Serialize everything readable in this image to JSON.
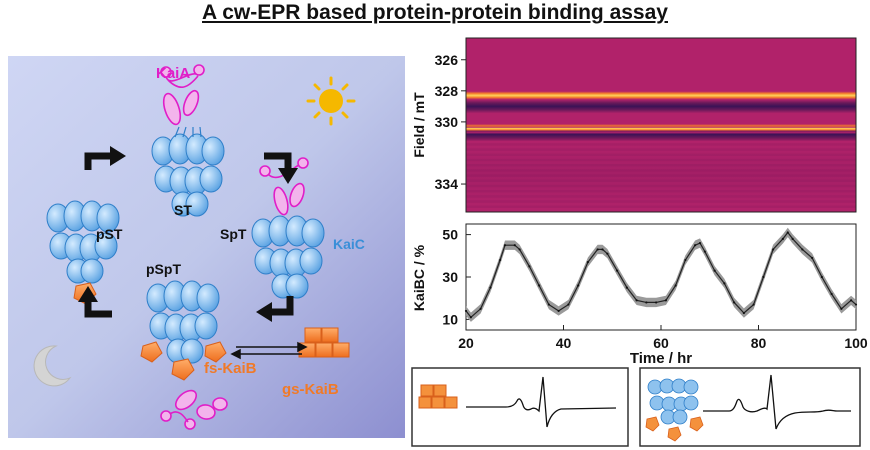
{
  "title": "A cw-EPR based protein-protein binding assay",
  "cycle": {
    "labels": {
      "kaia": "KaiA",
      "st": "ST",
      "pst": "pST",
      "spt": "SpT",
      "kaic": "KaiC",
      "pspt": "pSpT",
      "fs_kaib": "fs-KaiB",
      "gs_kaib": "gs-KaiB"
    },
    "colors": {
      "kaia": "#e01ec8",
      "kaic": "#3a8fd8",
      "kaib": "#f07a28",
      "sun": "#f5b800",
      "moon": "#cccccc"
    }
  },
  "heatmap": {
    "ylabel": "Field / mT",
    "yticks": [
      "326",
      "328",
      "330",
      "334"
    ],
    "ylim": [
      324.6,
      335.8
    ],
    "bands": [
      {
        "field": 328.3,
        "kind": "light"
      },
      {
        "field": 329.0,
        "kind": "dark"
      },
      {
        "field": 330.4,
        "kind": "light"
      },
      {
        "field": 330.8,
        "kind": "dark"
      }
    ]
  },
  "chart_data": {
    "type": "line",
    "xlabel": "Time / hr",
    "ylabel": "KaiBC / %",
    "xlim": [
      20,
      100
    ],
    "ylim": [
      5,
      55
    ],
    "xticks": [
      20,
      40,
      60,
      80,
      100
    ],
    "yticks": [
      10,
      30,
      50
    ],
    "series": [
      {
        "x": [
          20,
          21,
          23,
          25,
          27,
          28,
          30,
          31,
          33,
          35,
          37,
          39,
          41,
          43,
          45,
          47,
          48,
          49,
          51,
          53,
          55,
          57,
          59,
          61,
          63,
          65,
          67,
          68,
          69,
          71,
          73,
          75,
          77,
          79,
          81,
          83,
          85,
          86,
          87,
          89,
          91,
          93,
          95,
          97,
          99,
          100
        ],
        "values": [
          14,
          11,
          15,
          25,
          38,
          45,
          45,
          43,
          35,
          26,
          17,
          14,
          17,
          26,
          37,
          43,
          43,
          41,
          33,
          25,
          19,
          18,
          18,
          19,
          26,
          38,
          45,
          46,
          42,
          33,
          27,
          18,
          13,
          17,
          30,
          43,
          48,
          51,
          48,
          43,
          39,
          30,
          22,
          15,
          19,
          17
        ]
      }
    ]
  },
  "spectra": {
    "left": {
      "icon": "gs-KaiB"
    },
    "right": {
      "icon": "KaiC-KaiB complex"
    }
  }
}
